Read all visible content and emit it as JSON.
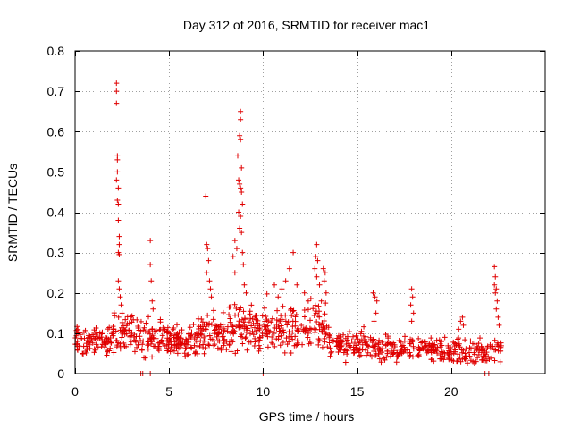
{
  "chart_data": {
    "type": "scatter",
    "title": "Day 312 of 2016, SRMTID for receiver mac1",
    "xlabel": "GPS time / hours",
    "ylabel": "SRMTID / TECUs",
    "xlim": [
      0,
      25
    ],
    "ylim": [
      0,
      0.8
    ],
    "xticks": [
      0,
      5,
      10,
      15,
      20
    ],
    "xtick_labels": [
      "0",
      "5",
      "10",
      "15",
      "20"
    ],
    "yticks": [
      0,
      0.1,
      0.2,
      0.3,
      0.4,
      0.5,
      0.6,
      0.7,
      0.8
    ],
    "ytick_labels": [
      "0",
      "0.1",
      "0.2",
      "0.3",
      "0.4",
      "0.5",
      "0.6",
      "0.7",
      "0.8"
    ],
    "grid": true,
    "marker": "plus",
    "color": "#e00000",
    "background": [
      {
        "start": 0.0,
        "end": 2.0,
        "level": 0.08,
        "spread": 0.03,
        "count": 90
      },
      {
        "start": 2.0,
        "end": 3.5,
        "level": 0.1,
        "spread": 0.04,
        "count": 70
      },
      {
        "start": 3.5,
        "end": 5.0,
        "level": 0.09,
        "spread": 0.04,
        "count": 70
      },
      {
        "start": 5.0,
        "end": 6.5,
        "level": 0.08,
        "spread": 0.03,
        "count": 80
      },
      {
        "start": 6.5,
        "end": 8.0,
        "level": 0.1,
        "spread": 0.04,
        "count": 80
      },
      {
        "start": 8.0,
        "end": 10.0,
        "level": 0.11,
        "spread": 0.05,
        "count": 100
      },
      {
        "start": 10.0,
        "end": 13.5,
        "level": 0.12,
        "spread": 0.05,
        "count": 150
      },
      {
        "start": 13.5,
        "end": 16.0,
        "level": 0.07,
        "spread": 0.03,
        "count": 110
      },
      {
        "start": 16.0,
        "end": 19.0,
        "level": 0.06,
        "spread": 0.025,
        "count": 120
      },
      {
        "start": 19.0,
        "end": 22.7,
        "level": 0.055,
        "spread": 0.025,
        "count": 140
      }
    ],
    "points": [
      {
        "x": 2.2,
        "y": 0.72
      },
      {
        "x": 2.2,
        "y": 0.7
      },
      {
        "x": 2.2,
        "y": 0.67
      },
      {
        "x": 2.25,
        "y": 0.54
      },
      {
        "x": 2.25,
        "y": 0.53
      },
      {
        "x": 2.25,
        "y": 0.5
      },
      {
        "x": 2.2,
        "y": 0.48
      },
      {
        "x": 2.3,
        "y": 0.46
      },
      {
        "x": 2.25,
        "y": 0.43
      },
      {
        "x": 2.3,
        "y": 0.42
      },
      {
        "x": 2.3,
        "y": 0.38
      },
      {
        "x": 2.35,
        "y": 0.34
      },
      {
        "x": 2.35,
        "y": 0.32
      },
      {
        "x": 2.3,
        "y": 0.3
      },
      {
        "x": 2.35,
        "y": 0.295
      },
      {
        "x": 2.3,
        "y": 0.23
      },
      {
        "x": 2.35,
        "y": 0.21
      },
      {
        "x": 2.4,
        "y": 0.19
      },
      {
        "x": 2.45,
        "y": 0.17
      },
      {
        "x": 2.5,
        "y": 0.15
      },
      {
        "x": 4.0,
        "y": 0.33
      },
      {
        "x": 4.0,
        "y": 0.27
      },
      {
        "x": 4.05,
        "y": 0.23
      },
      {
        "x": 4.1,
        "y": 0.18
      },
      {
        "x": 4.15,
        "y": 0.16
      },
      {
        "x": 6.95,
        "y": 0.44
      },
      {
        "x": 7.0,
        "y": 0.32
      },
      {
        "x": 7.05,
        "y": 0.31
      },
      {
        "x": 7.1,
        "y": 0.28
      },
      {
        "x": 7.0,
        "y": 0.25
      },
      {
        "x": 7.15,
        "y": 0.23
      },
      {
        "x": 7.2,
        "y": 0.21
      },
      {
        "x": 7.25,
        "y": 0.19
      },
      {
        "x": 8.8,
        "y": 0.65
      },
      {
        "x": 8.8,
        "y": 0.63
      },
      {
        "x": 8.75,
        "y": 0.59
      },
      {
        "x": 8.8,
        "y": 0.58
      },
      {
        "x": 8.65,
        "y": 0.54
      },
      {
        "x": 8.85,
        "y": 0.51
      },
      {
        "x": 8.7,
        "y": 0.48
      },
      {
        "x": 8.75,
        "y": 0.47
      },
      {
        "x": 8.8,
        "y": 0.46
      },
      {
        "x": 8.85,
        "y": 0.45
      },
      {
        "x": 8.9,
        "y": 0.42
      },
      {
        "x": 8.7,
        "y": 0.4
      },
      {
        "x": 8.8,
        "y": 0.39
      },
      {
        "x": 8.75,
        "y": 0.36
      },
      {
        "x": 8.85,
        "y": 0.35
      },
      {
        "x": 8.5,
        "y": 0.33
      },
      {
        "x": 8.6,
        "y": 0.31
      },
      {
        "x": 8.9,
        "y": 0.3
      },
      {
        "x": 8.4,
        "y": 0.29
      },
      {
        "x": 8.95,
        "y": 0.27
      },
      {
        "x": 8.5,
        "y": 0.25
      },
      {
        "x": 9.0,
        "y": 0.22
      },
      {
        "x": 9.1,
        "y": 0.2
      },
      {
        "x": 11.6,
        "y": 0.3
      },
      {
        "x": 11.4,
        "y": 0.26
      },
      {
        "x": 11.2,
        "y": 0.23
      },
      {
        "x": 11.8,
        "y": 0.22
      },
      {
        "x": 11.0,
        "y": 0.21
      },
      {
        "x": 10.6,
        "y": 0.22
      },
      {
        "x": 10.8,
        "y": 0.19
      },
      {
        "x": 12.2,
        "y": 0.2
      },
      {
        "x": 12.4,
        "y": 0.18
      },
      {
        "x": 12.85,
        "y": 0.32
      },
      {
        "x": 12.8,
        "y": 0.29
      },
      {
        "x": 12.9,
        "y": 0.28
      },
      {
        "x": 12.75,
        "y": 0.26
      },
      {
        "x": 12.85,
        "y": 0.24
      },
      {
        "x": 13.0,
        "y": 0.22
      },
      {
        "x": 13.2,
        "y": 0.26
      },
      {
        "x": 13.3,
        "y": 0.25
      },
      {
        "x": 13.25,
        "y": 0.23
      },
      {
        "x": 13.35,
        "y": 0.2
      },
      {
        "x": 13.1,
        "y": 0.18
      },
      {
        "x": 15.85,
        "y": 0.2
      },
      {
        "x": 15.95,
        "y": 0.19
      },
      {
        "x": 16.05,
        "y": 0.18
      },
      {
        "x": 16.0,
        "y": 0.15
      },
      {
        "x": 15.9,
        "y": 0.13
      },
      {
        "x": 17.9,
        "y": 0.21
      },
      {
        "x": 17.95,
        "y": 0.19
      },
      {
        "x": 17.85,
        "y": 0.17
      },
      {
        "x": 18.0,
        "y": 0.15
      },
      {
        "x": 17.9,
        "y": 0.13
      },
      {
        "x": 20.6,
        "y": 0.14
      },
      {
        "x": 20.5,
        "y": 0.13
      },
      {
        "x": 20.65,
        "y": 0.12
      },
      {
        "x": 20.4,
        "y": 0.11
      },
      {
        "x": 22.3,
        "y": 0.265
      },
      {
        "x": 22.35,
        "y": 0.24
      },
      {
        "x": 22.3,
        "y": 0.22
      },
      {
        "x": 22.4,
        "y": 0.21
      },
      {
        "x": 22.35,
        "y": 0.2
      },
      {
        "x": 22.45,
        "y": 0.18
      },
      {
        "x": 22.4,
        "y": 0.16
      },
      {
        "x": 22.5,
        "y": 0.14
      },
      {
        "x": 22.55,
        "y": 0.12
      },
      {
        "x": 3.5,
        "y": 0.0
      },
      {
        "x": 3.6,
        "y": 0.0
      },
      {
        "x": 4.0,
        "y": 0.0
      },
      {
        "x": 10.0,
        "y": 0.0
      },
      {
        "x": 21.8,
        "y": 0.0
      },
      {
        "x": 22.0,
        "y": 0.0
      }
    ]
  }
}
